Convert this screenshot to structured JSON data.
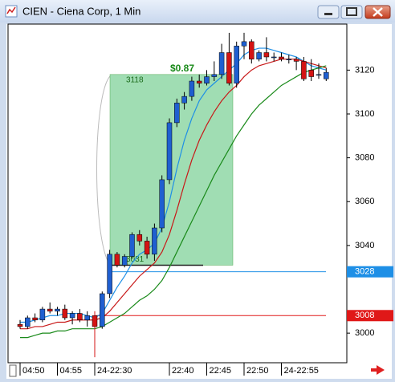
{
  "window": {
    "title": "CIEN - Ciena Corp, 1 Min"
  },
  "chart_data": {
    "type": "candlestick",
    "categories": [
      "04:50",
      null,
      null,
      null,
      null,
      "04:55",
      null,
      null,
      null,
      null,
      "24-22:30",
      null,
      null,
      null,
      null,
      null,
      null,
      null,
      null,
      null,
      "22:40",
      null,
      null,
      null,
      null,
      "22:45",
      null,
      null,
      null,
      null,
      "22:50",
      null,
      null,
      null,
      null,
      "24-22:55",
      null,
      null,
      null,
      null,
      null,
      null
    ],
    "open": [
      3004,
      3003,
      3007,
      3006,
      3011,
      3010,
      3011,
      3007,
      3009,
      3006,
      3008,
      3003,
      3018,
      3036,
      3031,
      3035,
      3045,
      3042,
      3036,
      3048,
      3070,
      3096,
      3105,
      3108,
      3115,
      3114,
      3117,
      3118,
      3128,
      3114,
      3131,
      3133,
      3125,
      3128,
      3126,
      3126,
      3125,
      3125,
      3124,
      3120,
      3118,
      3116
    ],
    "high": [
      3006,
      3008,
      3009,
      3012,
      3014,
      3012,
      3013,
      3010,
      3011,
      3010,
      3010,
      3019,
      3038,
      3037,
      3036,
      3046,
      3047,
      3044,
      3050,
      3072,
      3098,
      3107,
      3110,
      3117,
      3118,
      3120,
      3124,
      3132,
      3137,
      3133,
      3137,
      3134,
      3129,
      3135,
      3128,
      3128,
      3127,
      3126,
      3126,
      3125,
      3123,
      3121
    ],
    "low": [
      3002,
      3002,
      3005,
      3005,
      3009,
      3008,
      3006,
      3004,
      3005,
      3003,
      2989,
      3002,
      3016,
      3030,
      3030,
      3034,
      3040,
      3034,
      3033,
      3046,
      3068,
      3094,
      3102,
      3106,
      3112,
      3113,
      3115,
      3116,
      3113,
      3112,
      3125,
      3123,
      3124,
      3124,
      3124,
      3124,
      3123,
      3120,
      3115,
      3115,
      3116,
      3115
    ],
    "close": [
      3003,
      3007,
      3006,
      3011,
      3010,
      3011,
      3007,
      3009,
      3006,
      3008,
      3003,
      3018,
      3036,
      3031,
      3035,
      3045,
      3042,
      3036,
      3048,
      3070,
      3096,
      3105,
      3108,
      3115,
      3114,
      3117,
      3118,
      3128,
      3114,
      3131,
      3133,
      3125,
      3128,
      3126,
      3126,
      3125,
      3125,
      3124,
      3116,
      3117,
      3118,
      3119
    ],
    "up_color": "#1f5fd0",
    "down_color": "#d41414",
    "ylim": [
      2986.5,
      3141
    ],
    "yticks": [
      3000,
      3040,
      3060,
      3080,
      3100,
      3120
    ],
    "overlays": [
      {
        "color": "#1e8fe6",
        "values": [
          3005,
          3005,
          3006,
          3007,
          3008,
          3008,
          3009,
          3009,
          3009,
          3008,
          3007,
          3009,
          3015,
          3021,
          3026,
          3032,
          3036,
          3038,
          3041,
          3048,
          3060,
          3075,
          3088,
          3098,
          3106,
          3111,
          3114,
          3117,
          3120,
          3123,
          3127,
          3129,
          3130,
          3130,
          3129,
          3128,
          3127,
          3126,
          3124,
          3122,
          3121,
          3120
        ]
      },
      {
        "color": "#c81818",
        "values": [
          3002,
          3002,
          3003,
          3003,
          3004,
          3005,
          3005,
          3006,
          3006,
          3006,
          3006,
          3007,
          3010,
          3014,
          3018,
          3022,
          3026,
          3029,
          3032,
          3037,
          3045,
          3056,
          3068,
          3079,
          3088,
          3095,
          3101,
          3106,
          3110,
          3113,
          3117,
          3120,
          3122,
          3123,
          3124,
          3125,
          3125,
          3125,
          3124,
          3123,
          3122,
          3121
        ]
      },
      {
        "color": "#1a8a1a",
        "values": [
          2998,
          2998,
          2999,
          3000,
          3000,
          3001,
          3001,
          3002,
          3002,
          3002,
          3002,
          3003,
          3005,
          3007,
          3009,
          3012,
          3015,
          3017,
          3020,
          3024,
          3030,
          3037,
          3044,
          3051,
          3058,
          3065,
          3072,
          3078,
          3084,
          3090,
          3095,
          3100,
          3104,
          3107,
          3110,
          3113,
          3115,
          3117,
          3119,
          3120,
          3121,
          3122
        ]
      }
    ],
    "price_lines": [
      {
        "value": 3028,
        "color": "#1e8fe6"
      },
      {
        "value": 3008,
        "color": "#e01818"
      }
    ],
    "ruler": {
      "label": "$0.87",
      "start": 3031,
      "end": 3118
    }
  }
}
